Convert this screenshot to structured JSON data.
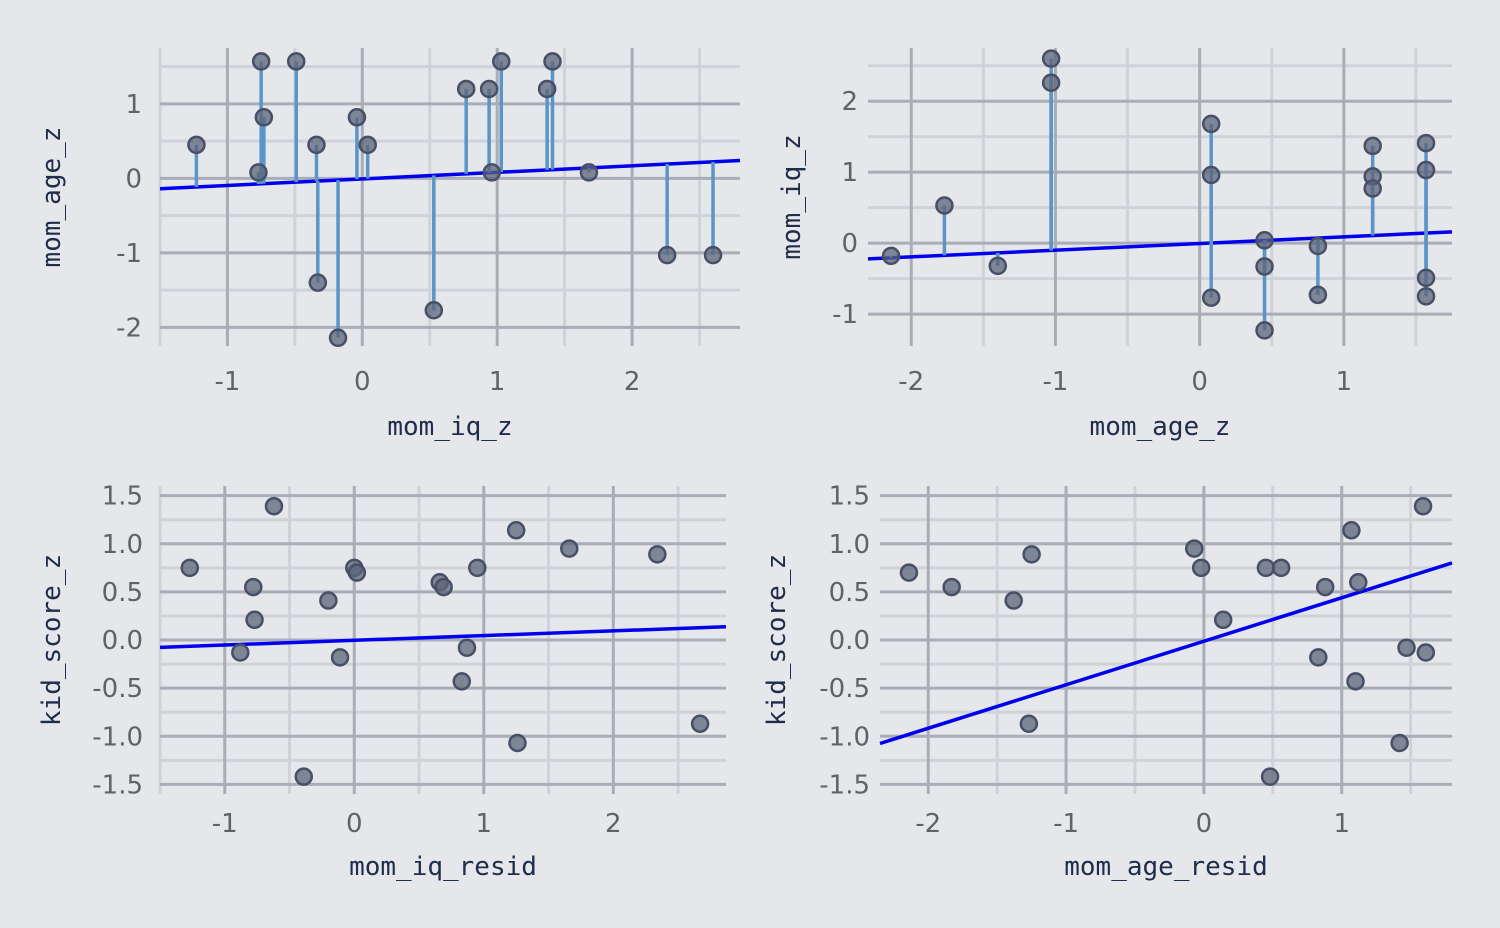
{
  "chart_data": [
    {
      "type": "scatter",
      "xlabel": "mom_iq_z",
      "ylabel": "mom_age_z",
      "xlim": [
        -1.5,
        2.8
      ],
      "ylim": [
        -2.25,
        1.75
      ],
      "xticks": [
        -1,
        0,
        1,
        2
      ],
      "yticks": [
        -2,
        -1,
        0,
        1
      ],
      "xtick_labels": [
        "-1",
        "0",
        "1",
        "2"
      ],
      "ytick_labels": [
        "-2",
        "-1",
        "0",
        "1"
      ],
      "fit_line": {
        "slope": 0.088,
        "intercept": -0.007
      },
      "show_residual_segments": true,
      "points": [
        {
          "x": -1.23,
          "y": 0.45
        },
        {
          "x": -0.77,
          "y": 0.08
        },
        {
          "x": -0.75,
          "y": 1.57
        },
        {
          "x": -0.73,
          "y": 0.82
        },
        {
          "x": -0.49,
          "y": 1.57
        },
        {
          "x": -0.34,
          "y": 0.45
        },
        {
          "x": -0.33,
          "y": -1.4
        },
        {
          "x": -0.18,
          "y": -2.14
        },
        {
          "x": -0.04,
          "y": 0.82
        },
        {
          "x": 0.04,
          "y": 0.45
        },
        {
          "x": 0.53,
          "y": -1.77
        },
        {
          "x": 0.77,
          "y": 1.2
        },
        {
          "x": 0.94,
          "y": 1.2
        },
        {
          "x": 0.96,
          "y": 0.08
        },
        {
          "x": 1.03,
          "y": 1.57
        },
        {
          "x": 1.37,
          "y": 1.2
        },
        {
          "x": 1.41,
          "y": 1.57
        },
        {
          "x": 1.68,
          "y": 0.08
        },
        {
          "x": 2.26,
          "y": -1.03
        },
        {
          "x": 2.6,
          "y": -1.03
        }
      ]
    },
    {
      "type": "scatter",
      "xlabel": "mom_age_z",
      "ylabel": "mom_iq_z",
      "xlim": [
        -2.3,
        1.75
      ],
      "ylim": [
        -1.45,
        2.75
      ],
      "xticks": [
        -2,
        -1,
        0,
        1
      ],
      "yticks": [
        -1,
        0,
        1,
        2
      ],
      "xtick_labels": [
        "-2",
        "-1",
        "0",
        "1"
      ],
      "ytick_labels": [
        "-1",
        "0",
        "1",
        "2"
      ],
      "fit_line": {
        "slope": 0.094,
        "intercept": -0.006
      },
      "show_residual_segments": true,
      "points": [
        {
          "x": -2.14,
          "y": -0.18
        },
        {
          "x": -1.77,
          "y": 0.53
        },
        {
          "x": -1.4,
          "y": -0.32
        },
        {
          "x": -1.03,
          "y": 2.6
        },
        {
          "x": -1.03,
          "y": 2.26
        },
        {
          "x": 0.08,
          "y": 1.68
        },
        {
          "x": 0.08,
          "y": 0.96
        },
        {
          "x": 0.08,
          "y": -0.77
        },
        {
          "x": 0.45,
          "y": 0.04
        },
        {
          "x": 0.45,
          "y": -0.33
        },
        {
          "x": 0.45,
          "y": -1.23
        },
        {
          "x": 0.82,
          "y": -0.04
        },
        {
          "x": 0.82,
          "y": -0.73
        },
        {
          "x": 1.2,
          "y": 1.37
        },
        {
          "x": 1.2,
          "y": 0.94
        },
        {
          "x": 1.2,
          "y": 0.77
        },
        {
          "x": 1.57,
          "y": 1.41
        },
        {
          "x": 1.57,
          "y": 1.03
        },
        {
          "x": 1.57,
          "y": -0.49
        },
        {
          "x": 1.57,
          "y": -0.75
        }
      ]
    },
    {
      "type": "scatter",
      "xlabel": "mom_iq_resid",
      "ylabel": "kid_score_z",
      "xlim": [
        -1.5,
        2.87
      ],
      "ylim": [
        -1.6,
        1.6
      ],
      "xticks": [
        -1,
        0,
        1,
        2
      ],
      "yticks": [
        -1.5,
        -1.0,
        -0.5,
        0.0,
        0.5,
        1.0,
        1.5
      ],
      "xtick_labels": [
        "-1",
        "0",
        "1",
        "2"
      ],
      "ytick_labels": [
        "-1.5",
        "-1.0",
        "-0.5",
        "0.0",
        "0.5",
        "1.0",
        "1.5"
      ],
      "fit_line": {
        "slope": 0.049,
        "intercept": -0.003
      },
      "show_residual_segments": false,
      "points": [
        {
          "x": -1.27,
          "y": 0.75
        },
        {
          "x": -0.62,
          "y": 1.39
        },
        {
          "x": -0.78,
          "y": 0.55
        },
        {
          "x": -0.77,
          "y": 0.21
        },
        {
          "x": -0.88,
          "y": -0.13
        },
        {
          "x": -0.2,
          "y": 0.41
        },
        {
          "x": -0.11,
          "y": -0.18
        },
        {
          "x": 0.0,
          "y": 0.75
        },
        {
          "x": 0.02,
          "y": 0.7
        },
        {
          "x": -0.39,
          "y": -1.42
        },
        {
          "x": 0.66,
          "y": 0.6
        },
        {
          "x": 0.69,
          "y": 0.55
        },
        {
          "x": 0.95,
          "y": 0.75
        },
        {
          "x": 0.87,
          "y": -0.08
        },
        {
          "x": 0.83,
          "y": -0.43
        },
        {
          "x": 1.25,
          "y": 1.14
        },
        {
          "x": 1.26,
          "y": -1.07
        },
        {
          "x": 1.66,
          "y": 0.95
        },
        {
          "x": 2.34,
          "y": 0.89
        },
        {
          "x": 2.67,
          "y": -0.87
        }
      ]
    },
    {
      "type": "scatter",
      "xlabel": "mom_age_resid",
      "ylabel": "kid_score_z",
      "xlim": [
        -2.35,
        1.8
      ],
      "ylim": [
        -1.6,
        1.6
      ],
      "xticks": [
        -2,
        -1,
        0,
        1
      ],
      "yticks": [
        -1.5,
        -1.0,
        -0.5,
        0.0,
        0.5,
        1.0,
        1.5
      ],
      "xtick_labels": [
        "-2",
        "-1",
        "0",
        "1"
      ],
      "ytick_labels": [
        "-1.5",
        "-1.0",
        "-0.5",
        "0.0",
        "0.5",
        "1.0",
        "1.5"
      ],
      "fit_line": {
        "slope": 0.452,
        "intercept": -0.013
      },
      "show_residual_segments": false,
      "points": [
        {
          "x": -2.14,
          "y": 0.7
        },
        {
          "x": -1.83,
          "y": 0.55
        },
        {
          "x": -1.38,
          "y": 0.41
        },
        {
          "x": -1.25,
          "y": 0.89
        },
        {
          "x": -1.27,
          "y": -0.87
        },
        {
          "x": -0.07,
          "y": 0.95
        },
        {
          "x": -0.02,
          "y": 0.75
        },
        {
          "x": 0.14,
          "y": 0.21
        },
        {
          "x": 0.45,
          "y": 0.75
        },
        {
          "x": 0.56,
          "y": 0.75
        },
        {
          "x": 0.48,
          "y": -1.42
        },
        {
          "x": 0.83,
          "y": -0.18
        },
        {
          "x": 0.88,
          "y": 0.55
        },
        {
          "x": 1.07,
          "y": 1.14
        },
        {
          "x": 1.1,
          "y": -0.43
        },
        {
          "x": 1.12,
          "y": 0.6
        },
        {
          "x": 1.42,
          "y": -1.07
        },
        {
          "x": 1.47,
          "y": -0.08
        },
        {
          "x": 1.59,
          "y": 1.39
        },
        {
          "x": 1.61,
          "y": -0.13
        }
      ]
    }
  ]
}
